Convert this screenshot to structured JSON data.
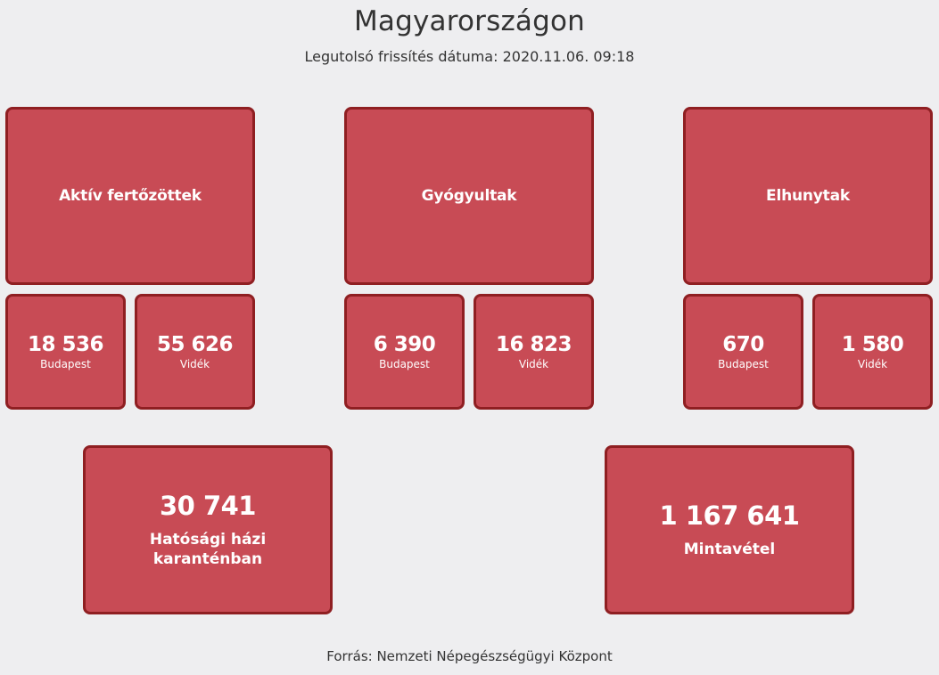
{
  "header": {
    "title": "Magyarországon",
    "updated": "Legutolsó frissítés dátuma: 2020.11.06. 09:18"
  },
  "groups": [
    {
      "title": "Aktív fertőzöttek",
      "stats": [
        {
          "value": "18 536",
          "label": "Budapest"
        },
        {
          "value": "55 626",
          "label": "Vidék"
        }
      ]
    },
    {
      "title": "Gyógyultak",
      "stats": [
        {
          "value": "6 390",
          "label": "Budapest"
        },
        {
          "value": "16 823",
          "label": "Vidék"
        }
      ]
    },
    {
      "title": "Elhunytak",
      "stats": [
        {
          "value": "670",
          "label": "Budapest"
        },
        {
          "value": "1 580",
          "label": "Vidék"
        }
      ]
    }
  ],
  "totals": [
    {
      "value": "30 741",
      "label": "Hatósági házi karanténban"
    },
    {
      "value": "1 167 641",
      "label": "Mintavétel"
    }
  ],
  "footer": {
    "source": "Forrás: Nemzeti Népegészségügyi Központ"
  },
  "colors": {
    "card_fill": "#c84b55",
    "card_border": "#8f1f22",
    "background": "#eeeef0",
    "text": "#333333"
  }
}
